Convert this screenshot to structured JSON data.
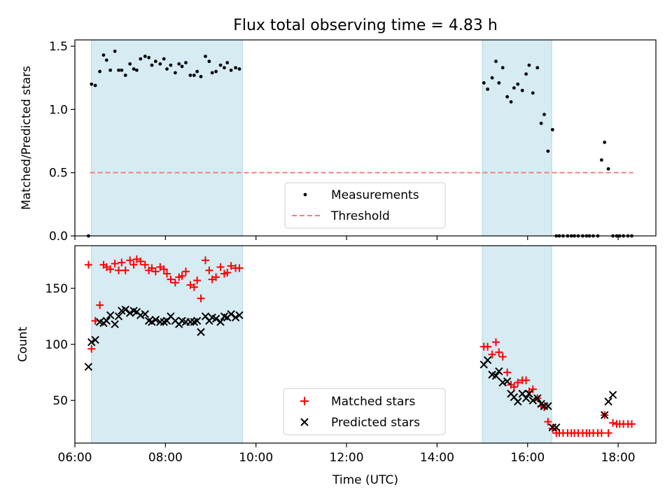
{
  "chart_data": [
    {
      "type": "scatter",
      "title": "Flux total observing time = 4.83 h",
      "xlabel": "",
      "ylabel": "Matched/Predicted stars",
      "ylim": [
        0,
        1.55
      ],
      "xlim": [
        "06:00",
        "18:50"
      ],
      "yticks": [
        "0.0",
        "0.5",
        "1.0",
        "1.5"
      ],
      "threshold": {
        "name": "Threshold",
        "y": 0.5,
        "x_range": [
          "06:20",
          "18:20"
        ],
        "color": "#f08080"
      },
      "shaded_intervals": [
        [
          "06:22",
          "09:42"
        ],
        [
          "15:00",
          "16:32"
        ]
      ],
      "legend": {
        "placement": "lower center",
        "entries": [
          "Measurements",
          "Threshold"
        ]
      },
      "series": [
        {
          "name": "Measurements",
          "color": "#000000",
          "x": [
            "06:18",
            "06:22",
            "06:27",
            "06:33",
            "06:38",
            "06:42",
            "06:47",
            "06:53",
            "06:58",
            "07:02",
            "07:07",
            "07:13",
            "07:18",
            "07:22",
            "07:27",
            "07:33",
            "07:38",
            "07:42",
            "07:47",
            "07:53",
            "07:58",
            "08:02",
            "08:07",
            "08:13",
            "08:18",
            "08:22",
            "08:27",
            "08:33",
            "08:38",
            "08:42",
            "08:47",
            "08:53",
            "08:58",
            "09:02",
            "09:07",
            "09:13",
            "09:18",
            "09:22",
            "09:27",
            "09:33",
            "09:38",
            "15:02",
            "15:07",
            "15:13",
            "15:18",
            "15:22",
            "15:27",
            "15:33",
            "15:38",
            "15:42",
            "15:47",
            "15:53",
            "15:58",
            "16:02",
            "16:07",
            "16:13",
            "16:18",
            "16:22",
            "16:27",
            "16:33",
            "16:38",
            "16:42",
            "16:47",
            "16:53",
            "16:58",
            "17:02",
            "17:07",
            "17:13",
            "17:18",
            "17:22",
            "17:27",
            "17:33",
            "17:38",
            "17:42",
            "17:47",
            "17:53",
            "17:58",
            "18:02",
            "18:07",
            "18:13",
            "18:18"
          ],
          "y": [
            0.0,
            1.2,
            1.19,
            1.3,
            1.43,
            1.39,
            1.31,
            1.46,
            1.31,
            1.31,
            1.27,
            1.36,
            1.32,
            1.31,
            1.4,
            1.42,
            1.41,
            1.35,
            1.38,
            1.36,
            1.4,
            1.32,
            1.35,
            1.29,
            1.36,
            1.34,
            1.37,
            1.27,
            1.27,
            1.3,
            1.26,
            1.42,
            1.38,
            1.29,
            1.3,
            1.35,
            1.33,
            1.37,
            1.31,
            1.33,
            1.32,
            1.21,
            1.16,
            1.25,
            1.38,
            1.21,
            1.33,
            1.1,
            1.06,
            1.17,
            1.2,
            1.15,
            1.28,
            1.35,
            1.13,
            1.33,
            0.89,
            0.96,
            0.67,
            0.84,
            0.0,
            0.0,
            0.0,
            0.0,
            0.0,
            0.0,
            0.0,
            0.0,
            0.0,
            0.0,
            0.0,
            0.0,
            0.6,
            0.74,
            0.53,
            0.0,
            0.0,
            0.0,
            0.0,
            0.0,
            0.0
          ]
        }
      ]
    },
    {
      "type": "scatter",
      "title": "",
      "xlabel": "Time (UTC)",
      "ylabel": "Count",
      "ylim": [
        12,
        188
      ],
      "xlim": [
        "06:00",
        "18:50"
      ],
      "xticks": [
        "06:00",
        "08:00",
        "10:00",
        "12:00",
        "14:00",
        "16:00",
        "18:00"
      ],
      "yticks": [
        "50",
        "100",
        "150"
      ],
      "shaded_intervals": [
        [
          "06:22",
          "09:42"
        ],
        [
          "15:00",
          "16:32"
        ]
      ],
      "legend": {
        "placement": "lower center",
        "entries": [
          "Matched stars",
          "Predicted stars"
        ]
      },
      "series": [
        {
          "name": "Matched stars",
          "color": "#ff0000",
          "marker": "+",
          "x": [
            "06:18",
            "06:22",
            "06:27",
            "06:33",
            "06:38",
            "06:42",
            "06:47",
            "06:53",
            "06:58",
            "07:02",
            "07:07",
            "07:13",
            "07:18",
            "07:22",
            "07:27",
            "07:33",
            "07:38",
            "07:42",
            "07:47",
            "07:53",
            "07:58",
            "08:02",
            "08:07",
            "08:13",
            "08:18",
            "08:22",
            "08:27",
            "08:33",
            "08:38",
            "08:42",
            "08:47",
            "08:53",
            "08:58",
            "09:02",
            "09:07",
            "09:13",
            "09:18",
            "09:22",
            "09:27",
            "09:33",
            "09:38",
            "15:02",
            "15:07",
            "15:13",
            "15:18",
            "15:22",
            "15:27",
            "15:33",
            "15:38",
            "15:42",
            "15:47",
            "15:53",
            "15:58",
            "16:02",
            "16:07",
            "16:13",
            "16:18",
            "16:22",
            "16:27",
            "16:33",
            "16:38",
            "16:42",
            "16:47",
            "16:53",
            "16:58",
            "17:02",
            "17:07",
            "17:13",
            "17:18",
            "17:22",
            "17:27",
            "17:33",
            "17:38",
            "17:42",
            "17:47",
            "17:53",
            "17:58",
            "18:02",
            "18:07",
            "18:13",
            "18:18"
          ],
          "y": [
            171,
            96,
            121,
            135,
            171,
            169,
            167,
            172,
            166,
            173,
            166,
            175,
            171,
            176,
            174,
            171,
            166,
            168,
            165,
            169,
            167,
            163,
            158,
            155,
            160,
            161,
            165,
            153,
            151,
            157,
            141,
            175,
            166,
            158,
            160,
            169,
            163,
            164,
            170,
            168,
            168,
            98,
            98,
            91,
            102,
            93,
            89,
            75,
            64,
            62,
            66,
            68,
            68,
            58,
            60,
            52,
            45,
            44,
            31,
            25,
            21,
            21,
            21,
            21,
            21,
            21,
            21,
            21,
            21,
            21,
            21,
            21,
            21,
            37,
            21,
            30,
            29,
            29,
            29,
            29,
            29
          ]
        },
        {
          "name": "Predicted stars",
          "color": "#000000",
          "marker": "x",
          "x": [
            "06:18",
            "06:22",
            "06:27",
            "06:33",
            "06:38",
            "06:42",
            "06:47",
            "06:53",
            "06:58",
            "07:02",
            "07:07",
            "07:13",
            "07:18",
            "07:22",
            "07:27",
            "07:33",
            "07:38",
            "07:42",
            "07:47",
            "07:53",
            "07:58",
            "08:02",
            "08:07",
            "08:13",
            "08:18",
            "08:22",
            "08:27",
            "08:33",
            "08:38",
            "08:42",
            "08:47",
            "08:53",
            "08:58",
            "09:02",
            "09:07",
            "09:13",
            "09:18",
            "09:22",
            "09:27",
            "09:33",
            "09:38",
            "15:02",
            "15:07",
            "15:13",
            "15:18",
            "15:22",
            "15:27",
            "15:33",
            "15:38",
            "15:42",
            "15:47",
            "15:53",
            "15:58",
            "16:02",
            "16:07",
            "16:13",
            "16:18",
            "16:22",
            "16:27",
            "16:33",
            "16:38",
            "17:42",
            "17:47",
            "17:53"
          ],
          "y": [
            80,
            102,
            104,
            120,
            119,
            121,
            126,
            118,
            125,
            130,
            131,
            128,
            130,
            129,
            126,
            127,
            121,
            120,
            122,
            120,
            120,
            121,
            125,
            121,
            118,
            121,
            120,
            120,
            120,
            121,
            111,
            125,
            121,
            124,
            123,
            120,
            125,
            124,
            127,
            124,
            126,
            82,
            86,
            73,
            72,
            76,
            66,
            67,
            56,
            53,
            49,
            56,
            52,
            56,
            50,
            52,
            47,
            45,
            45,
            26,
            26,
            37,
            49,
            55
          ]
        }
      ]
    }
  ]
}
